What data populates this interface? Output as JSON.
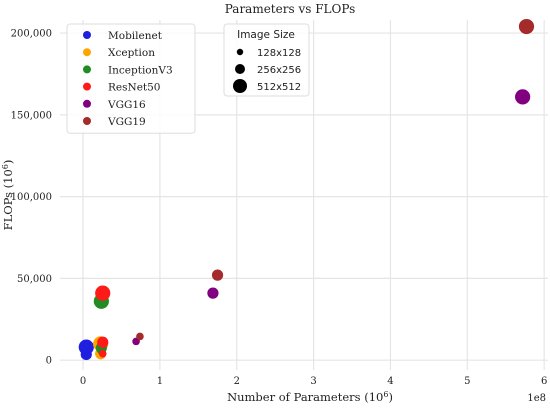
{
  "chart_data": {
    "type": "scatter",
    "title": "Parameters vs FLOPs",
    "xlabel": "Number of Parameters (10",
    "xlabel_sup": "6",
    "xlabel_close": ")",
    "ylabel": "FLOPs (10",
    "ylabel_sup": "6",
    "ylabel_close": ")",
    "x_offset_label": "1e8",
    "xlim": [
      -0.3,
      6.05
    ],
    "ylim": [
      -6000,
      208000
    ],
    "x_ticks": [
      0,
      1,
      2,
      3,
      4,
      5,
      6
    ],
    "x_tick_labels": [
      "0",
      "1",
      "2",
      "3",
      "4",
      "5",
      "6"
    ],
    "y_ticks": [
      0,
      50000,
      100000,
      150000,
      200000
    ],
    "y_tick_labels": [
      "0",
      "50,000",
      "100,000",
      "150,000",
      "200,000"
    ],
    "grid": true,
    "grid_color": "#e5e5e5",
    "background_color": "#ffffff",
    "legend_placement": "top-left",
    "size_legend": {
      "title": "Image Size",
      "entries": [
        {
          "label": "128x128",
          "size": "small"
        },
        {
          "label": "256x256",
          "size": "medium"
        },
        {
          "label": "512x512",
          "size": "large"
        }
      ]
    },
    "series": [
      {
        "name": "Mobilenet",
        "color": "#1f1fe0",
        "points": [
          {
            "x": 0.042,
            "y": 2500,
            "size": "small"
          },
          {
            "x": 0.042,
            "y": 3500,
            "size": "medium"
          },
          {
            "x": 0.042,
            "y": 8000,
            "size": "large"
          }
        ]
      },
      {
        "name": "Xception",
        "color": "#ffa500",
        "points": [
          {
            "x": 0.229,
            "y": 2800,
            "size": "small"
          },
          {
            "x": 0.229,
            "y": 4000,
            "size": "medium"
          },
          {
            "x": 0.229,
            "y": 10000,
            "size": "large"
          }
        ]
      },
      {
        "name": "InceptionV3",
        "color": "#228b22",
        "points": [
          {
            "x": 0.238,
            "y": 5500,
            "size": "small"
          },
          {
            "x": 0.238,
            "y": 7500,
            "size": "medium"
          },
          {
            "x": 0.238,
            "y": 36000,
            "size": "large"
          }
        ]
      },
      {
        "name": "ResNet50",
        "color": "#ff1a1a",
        "points": [
          {
            "x": 0.256,
            "y": 4000,
            "size": "small"
          },
          {
            "x": 0.256,
            "y": 11000,
            "size": "medium"
          },
          {
            "x": 0.256,
            "y": 41000,
            "size": "large"
          }
        ]
      },
      {
        "name": "VGG16",
        "color": "#800080",
        "points": [
          {
            "x": 0.69,
            "y": 11500,
            "size": "small"
          },
          {
            "x": 1.69,
            "y": 41000,
            "size": "medium"
          },
          {
            "x": 5.72,
            "y": 161000,
            "size": "large"
          }
        ]
      },
      {
        "name": "VGG19",
        "color": "#a52a2a",
        "points": [
          {
            "x": 0.74,
            "y": 14500,
            "size": "small"
          },
          {
            "x": 1.75,
            "y": 52000,
            "size": "medium"
          },
          {
            "x": 5.77,
            "y": 204000,
            "size": "large"
          }
        ]
      }
    ]
  }
}
